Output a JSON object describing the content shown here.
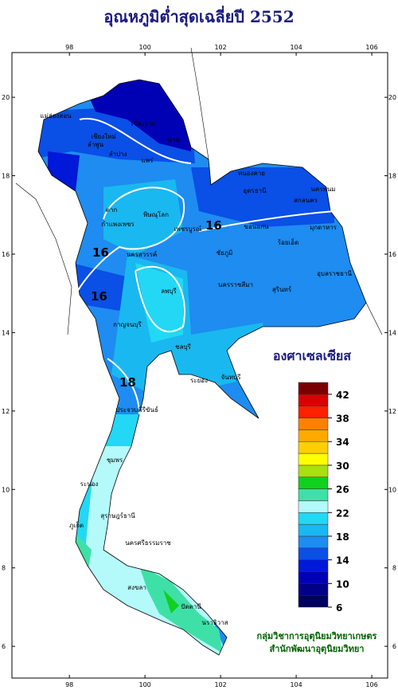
{
  "title": "อุณหภูมิต่ำสุดเฉลี่ยปี 2552",
  "map": {
    "xlim": [
      96.48,
      106.42
    ],
    "ylim": [
      5.19,
      21.14
    ],
    "xticks": [
      98,
      100,
      102,
      104,
      106
    ],
    "yticks": [
      6,
      8,
      10,
      12,
      14,
      16,
      18,
      20
    ]
  },
  "legend": {
    "unit": "องศาเซลเซียส",
    "levels": [
      6,
      8,
      10,
      12,
      14,
      16,
      18,
      20,
      22,
      24,
      26,
      28,
      30,
      32,
      34,
      36,
      38,
      40,
      42,
      44
    ],
    "colors": [
      "#00005e",
      "#000088",
      "#0000b4",
      "#0018d8",
      "#0a4fe6",
      "#1e8cf0",
      "#1ab8f0",
      "#22d8f5",
      "#b4fafa",
      "#3fe0a8",
      "#10d020",
      "#a8e010",
      "#ffff00",
      "#ffd000",
      "#ffaa00",
      "#ff8000",
      "#ff2000",
      "#d80000",
      "#7a0000"
    ],
    "ticks": [
      6,
      10,
      14,
      18,
      22,
      26,
      30,
      34,
      38,
      42
    ]
  },
  "contour_labels": [
    "16",
    "16",
    "18",
    "16"
  ],
  "places": [
    "แม่ฮ่องสอน",
    "เชียงราย",
    "เชียงใหม่",
    "ลำพูน",
    "ลำปาง",
    "แพร่",
    "น่าน",
    "ตาก",
    "พิษณุโลก",
    "กำแพงเพชร",
    "เพชรบูรณ์",
    "นครสวรรค์",
    "หนองคาย",
    "อุดรธานี",
    "นครพนม",
    "สกลนคร",
    "มุกดาหาร",
    "ขอนแก่น",
    "ชัยภูมิ",
    "ร้อยเอ็ด",
    "อุบลราชธานี",
    "นครราชสีมา",
    "สุรินทร์",
    "ลพบุรี",
    "กาญจนบุรี",
    "ชลบุรี",
    "ระยอง",
    "จันทบุรี",
    "ประจวบคีรีขันธ์",
    "ชุมพร",
    "ระนอง",
    "สุราษฎร์ธานี",
    "นครศรีธรรมราช",
    "ภูเก็ต",
    "สงขลา",
    "ปัตตานี",
    "นราธิวาส"
  ],
  "credits": [
    "กลุ่มวิชาการอุตุนิยมวิทยาเกษตร",
    "สำนักพัฒนาอุตุนิยมวิทยา"
  ]
}
